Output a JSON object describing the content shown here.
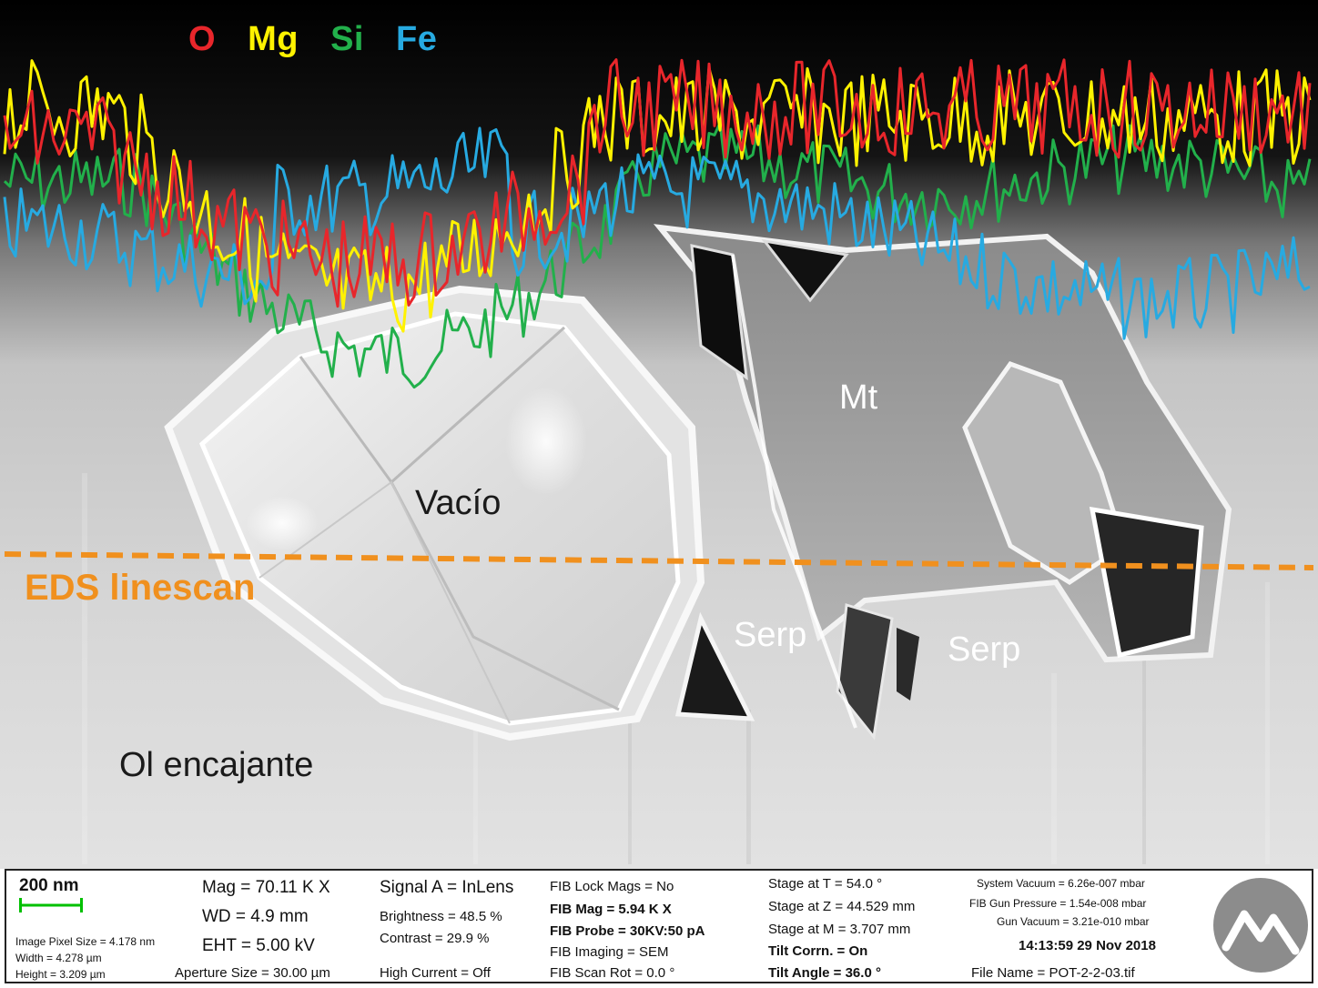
{
  "legend": {
    "items": [
      {
        "label": "O",
        "color": "#e8262b"
      },
      {
        "label": "Mg",
        "color": "#fff200"
      },
      {
        "label": "Si",
        "color": "#22b04b"
      },
      {
        "label": "Fe",
        "color": "#27aae1"
      }
    ]
  },
  "annotations": {
    "mt": "Mt",
    "vacio": "Vacío",
    "serp1": "Serp",
    "serp2": "Serp",
    "ol": "Ol encajante",
    "eds": "EDS linescan",
    "eds_color": "#f0901e"
  },
  "databar": {
    "scale_label": "200 nm",
    "pixel_size": "Image Pixel Size = 4.178 nm",
    "width": "Width = 4.278 µm",
    "height": "Height = 3.209 µm",
    "mag": "Mag = 70.11 K X",
    "wd": "WD = 4.9 mm",
    "eht": "EHT = 5.00 kV",
    "aperture": "Aperture Size = 30.00 µm",
    "signal": "Signal A = InLens",
    "brightness": "Brightness = 48.5 %",
    "contrast": "Contrast = 29.9 %",
    "high_current": "High Current = Off",
    "fib_lock": "FIB Lock Mags = No",
    "fib_mag": "FIB Mag = 5.94 K X",
    "fib_probe": "FIB Probe = 30KV:50 pA",
    "fib_imaging": "FIB Imaging = SEM",
    "fib_scan_rot": "FIB Scan Rot = 0.0 °",
    "stage_t": "Stage at T = 54.0 °",
    "stage_z": "Stage at Z = 44.529 mm",
    "stage_m": "Stage at M = 3.707 mm",
    "tilt_corrn": "Tilt Corrn. = On",
    "tilt_angle": "Tilt Angle = 36.0 °",
    "system_vacuum": "System Vacuum = 6.26e-007 mbar",
    "fib_gun_pressure": "FIB Gun Pressure = 1.54e-008 mbar",
    "gun_vacuum": "Gun Vacuum = 3.21e-010 mbar",
    "datetime": "14:13:59  29 Nov 2018",
    "file_name": "File Name = POT-2-2-03.tif",
    "scalebar_color": "#00c000"
  }
}
